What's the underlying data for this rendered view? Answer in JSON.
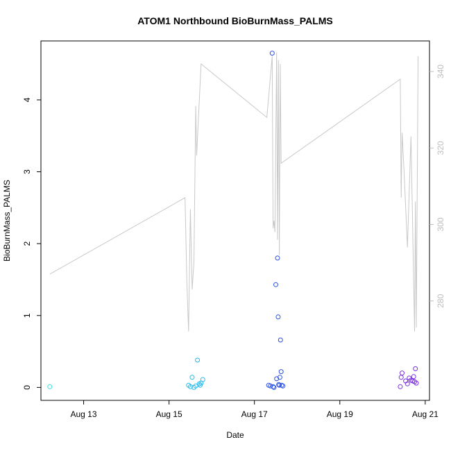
{
  "chart_data": {
    "type": "scatter",
    "title": "ATOM1 Northbound BioBurnMass_PALMS",
    "xlabel": "Date",
    "ylabel": "BioBurnMass_PALMS",
    "x_ticks": [
      "Aug 13",
      "Aug 15",
      "Aug 17",
      "Aug 19",
      "Aug 21"
    ],
    "y_ticks": [
      "0",
      "1",
      "2",
      "3",
      "4"
    ],
    "y2_ticks": [
      "280",
      "300",
      "320",
      "340"
    ],
    "xlim": [
      "2016-08-12 00:00",
      "2016-08-21 02:24"
    ],
    "ylim": [
      -0.18,
      4.82
    ],
    "y2lim": [
      254,
      348
    ],
    "colors": {
      "altitude_line": "#c8c8c8",
      "right_axis": "#bdbdbd"
    },
    "series": [
      {
        "color": "#33e0e0",
        "points": [
          [
            "2016-08-12 05:00",
            0.01
          ]
        ]
      },
      {
        "color": "#22b8ee",
        "points": [
          [
            "2016-08-15 11:00",
            0.03
          ],
          [
            "2016-08-15 12:00",
            0.01
          ],
          [
            "2016-08-15 13:00",
            0.14
          ],
          [
            "2016-08-15 14:00",
            0.0
          ],
          [
            "2016-08-15 15:00",
            0.02
          ],
          [
            "2016-08-15 16:00",
            0.38
          ],
          [
            "2016-08-15 17:00",
            0.05
          ],
          [
            "2016-08-15 17:30",
            0.03
          ],
          [
            "2016-08-15 18:00",
            0.06
          ],
          [
            "2016-08-15 19:00",
            0.11
          ]
        ]
      },
      {
        "color": "#2a4fe0",
        "points": [
          [
            "2016-08-17 10:00",
            4.65
          ],
          [
            "2016-08-17 08:00",
            0.03
          ],
          [
            "2016-08-17 09:00",
            0.02
          ],
          [
            "2016-08-17 10:30",
            0.01
          ],
          [
            "2016-08-17 11:00",
            0.0
          ],
          [
            "2016-08-17 12:00",
            1.43
          ],
          [
            "2016-08-17 12:30",
            0.12
          ],
          [
            "2016-08-17 13:00",
            1.8
          ],
          [
            "2016-08-17 13:20",
            0.98
          ],
          [
            "2016-08-17 13:40",
            0.04
          ],
          [
            "2016-08-17 14:00",
            0.03
          ],
          [
            "2016-08-17 14:20",
            0.14
          ],
          [
            "2016-08-17 14:40",
            0.66
          ],
          [
            "2016-08-17 15:00",
            0.22
          ],
          [
            "2016-08-17 15:20",
            0.03
          ],
          [
            "2016-08-17 16:00",
            0.02
          ]
        ]
      },
      {
        "color": "#7a2ee0",
        "points": [
          [
            "2016-08-20 10:00",
            0.01
          ],
          [
            "2016-08-20 10:30",
            0.14
          ],
          [
            "2016-08-20 11:00",
            0.2
          ],
          [
            "2016-08-20 13:00",
            0.09
          ],
          [
            "2016-08-20 14:00",
            0.05
          ],
          [
            "2016-08-20 15:00",
            0.13
          ],
          [
            "2016-08-20 16:00",
            0.1
          ],
          [
            "2016-08-20 17:00",
            0.09
          ],
          [
            "2016-08-20 17:30",
            0.15
          ],
          [
            "2016-08-20 18:00",
            0.08
          ],
          [
            "2016-08-20 18:30",
            0.26
          ],
          [
            "2016-08-20 19:00",
            0.06
          ]
        ]
      }
    ],
    "altitude_line": [
      [
        "2016-08-12 05:00",
        287
      ],
      [
        "2016-08-15 09:00",
        307
      ],
      [
        "2016-08-15 10:00",
        285
      ],
      [
        "2016-08-15 11:00",
        272
      ],
      [
        "2016-08-15 12:00",
        304
      ],
      [
        "2016-08-15 13:00",
        283
      ],
      [
        "2016-08-15 14:00",
        290
      ],
      [
        "2016-08-15 15:00",
        331
      ],
      [
        "2016-08-15 15:30",
        318
      ],
      [
        "2016-08-15 18:00",
        342
      ],
      [
        "2016-08-17 07:00",
        328
      ],
      [
        "2016-08-17 10:00",
        344
      ],
      [
        "2016-08-17 10:30",
        299
      ],
      [
        "2016-08-17 11:00",
        301
      ],
      [
        "2016-08-17 11:30",
        298
      ],
      [
        "2016-08-17 12:30",
        345
      ],
      [
        "2016-08-17 13:00",
        296
      ],
      [
        "2016-08-17 13:30",
        343
      ],
      [
        "2016-08-17 14:00",
        292
      ],
      [
        "2016-08-17 14:30",
        342
      ],
      [
        "2016-08-17 15:00",
        316
      ],
      [
        "2016-08-20 10:00",
        338
      ],
      [
        "2016-08-20 10:30",
        307
      ],
      [
        "2016-08-20 11:00",
        324
      ],
      [
        "2016-08-20 12:00",
        315
      ],
      [
        "2016-08-20 14:00",
        294
      ],
      [
        "2016-08-20 16:00",
        323
      ],
      [
        "2016-08-20 18:00",
        272
      ],
      [
        "2016-08-20 18:30",
        306
      ],
      [
        "2016-08-20 19:00",
        273
      ],
      [
        "2016-08-20 20:00",
        344
      ]
    ]
  }
}
